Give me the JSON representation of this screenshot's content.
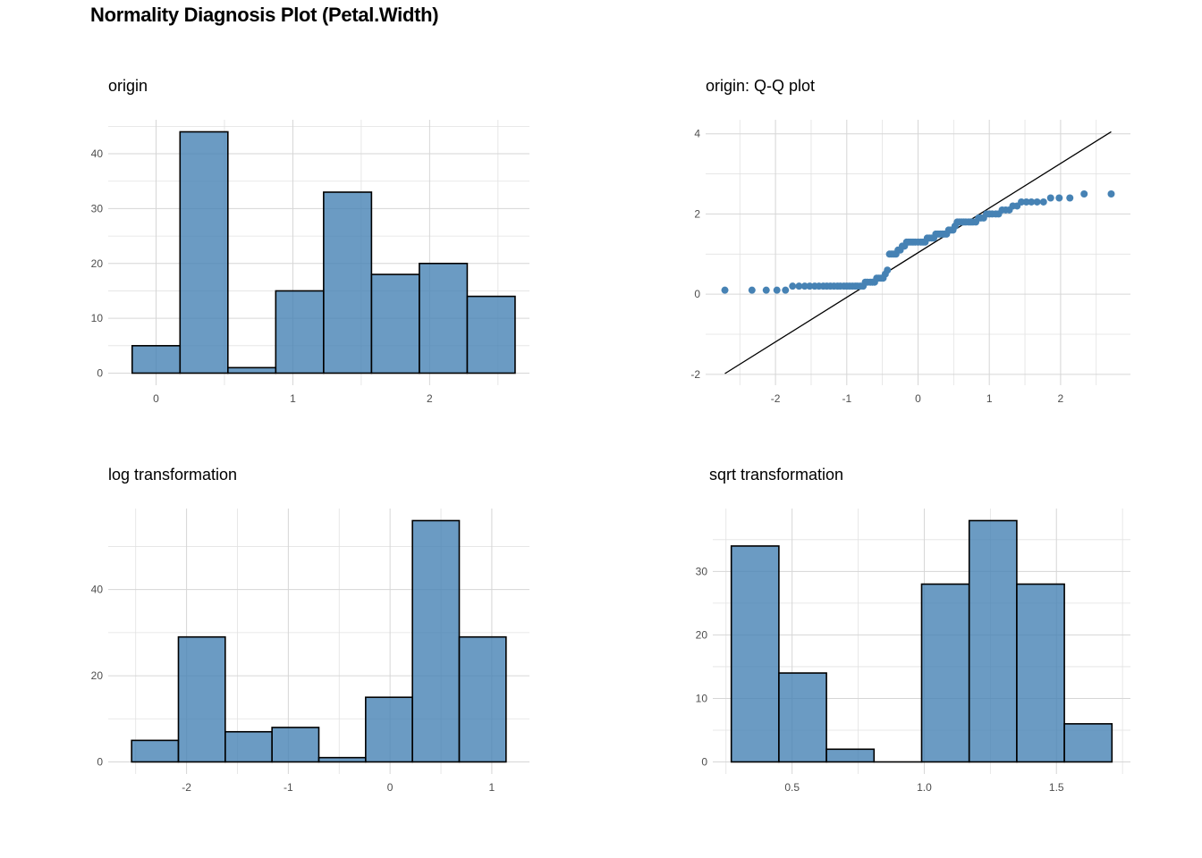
{
  "title": "Normality Diagnosis Plot (Petal.Width)",
  "colors": {
    "fill": "#4682B4",
    "outline": "#000000",
    "grid": "#d6d6d6",
    "point": "#4682B4",
    "line": "#000000"
  },
  "chart_data": [
    {
      "type": "bar",
      "subtitle": "origin",
      "bins": [
        {
          "x0": -0.175,
          "x1": 0.175,
          "count": 5
        },
        {
          "x0": 0.175,
          "x1": 0.525,
          "count": 44
        },
        {
          "x0": 0.525,
          "x1": 0.875,
          "count": 1
        },
        {
          "x0": 0.875,
          "x1": 1.225,
          "count": 15
        },
        {
          "x0": 1.225,
          "x1": 1.575,
          "count": 33
        },
        {
          "x0": 1.575,
          "x1": 1.925,
          "count": 18
        },
        {
          "x0": 1.925,
          "x1": 2.275,
          "count": 20
        },
        {
          "x0": 2.275,
          "x1": 2.625,
          "count": 14
        }
      ],
      "xticks": [
        0,
        1,
        2
      ],
      "yticks": [
        0,
        10,
        20,
        30,
        40
      ],
      "xlim": [
        -0.35,
        2.73
      ],
      "ylim": [
        -2.2,
        46.2
      ]
    },
    {
      "type": "scatter",
      "subtitle": "origin: Q-Q plot",
      "points": [
        [
          -2.71,
          0.1
        ],
        [
          -2.33,
          0.1
        ],
        [
          -2.13,
          0.1
        ],
        [
          -1.98,
          0.1
        ],
        [
          -1.86,
          0.1
        ],
        [
          -1.76,
          0.2
        ],
        [
          -1.67,
          0.2
        ],
        [
          -1.59,
          0.2
        ],
        [
          -1.52,
          0.2
        ],
        [
          -1.45,
          0.2
        ],
        [
          -1.39,
          0.2
        ],
        [
          -1.33,
          0.2
        ],
        [
          -1.28,
          0.2
        ],
        [
          -1.23,
          0.2
        ],
        [
          -1.18,
          0.2
        ],
        [
          -1.13,
          0.2
        ],
        [
          -1.09,
          0.2
        ],
        [
          -1.04,
          0.2
        ],
        [
          -1.0,
          0.2
        ],
        [
          -0.96,
          0.2
        ],
        [
          -0.92,
          0.2
        ],
        [
          -0.88,
          0.2
        ],
        [
          -0.85,
          0.2
        ],
        [
          -0.81,
          0.2
        ],
        [
          -0.77,
          0.2
        ],
        [
          -0.74,
          0.3
        ],
        [
          -0.71,
          0.3
        ],
        [
          -0.67,
          0.3
        ],
        [
          -0.64,
          0.3
        ],
        [
          -0.61,
          0.3
        ],
        [
          -0.58,
          0.4
        ],
        [
          -0.55,
          0.4
        ],
        [
          -0.52,
          0.4
        ],
        [
          -0.49,
          0.4
        ],
        [
          -0.46,
          0.5
        ],
        [
          -0.43,
          0.6
        ],
        [
          -0.4,
          1.0
        ],
        [
          -0.37,
          1.0
        ],
        [
          -0.34,
          1.0
        ],
        [
          -0.31,
          1.0
        ],
        [
          -0.28,
          1.1
        ],
        [
          -0.25,
          1.1
        ],
        [
          -0.22,
          1.2
        ],
        [
          -0.19,
          1.2
        ],
        [
          -0.16,
          1.3
        ],
        [
          -0.13,
          1.3
        ],
        [
          -0.1,
          1.3
        ],
        [
          -0.07,
          1.3
        ],
        [
          -0.04,
          1.3
        ],
        [
          0.0,
          1.3
        ],
        [
          0.04,
          1.3
        ],
        [
          0.07,
          1.3
        ],
        [
          0.1,
          1.3
        ],
        [
          0.13,
          1.4
        ],
        [
          0.16,
          1.4
        ],
        [
          0.19,
          1.4
        ],
        [
          0.22,
          1.4
        ],
        [
          0.25,
          1.5
        ],
        [
          0.28,
          1.5
        ],
        [
          0.31,
          1.5
        ],
        [
          0.34,
          1.5
        ],
        [
          0.37,
          1.5
        ],
        [
          0.4,
          1.5
        ],
        [
          0.43,
          1.6
        ],
        [
          0.46,
          1.6
        ],
        [
          0.49,
          1.6
        ],
        [
          0.52,
          1.7
        ],
        [
          0.55,
          1.8
        ],
        [
          0.58,
          1.8
        ],
        [
          0.61,
          1.8
        ],
        [
          0.64,
          1.8
        ],
        [
          0.67,
          1.8
        ],
        [
          0.71,
          1.8
        ],
        [
          0.74,
          1.8
        ],
        [
          0.77,
          1.8
        ],
        [
          0.81,
          1.8
        ],
        [
          0.85,
          1.9
        ],
        [
          0.88,
          1.9
        ],
        [
          0.92,
          1.9
        ],
        [
          0.96,
          2.0
        ],
        [
          1.0,
          2.0
        ],
        [
          1.04,
          2.0
        ],
        [
          1.09,
          2.0
        ],
        [
          1.13,
          2.0
        ],
        [
          1.18,
          2.1
        ],
        [
          1.23,
          2.1
        ],
        [
          1.28,
          2.1
        ],
        [
          1.33,
          2.2
        ],
        [
          1.39,
          2.2
        ],
        [
          1.45,
          2.3
        ],
        [
          1.52,
          2.3
        ],
        [
          1.59,
          2.3
        ],
        [
          1.67,
          2.3
        ],
        [
          1.76,
          2.3
        ],
        [
          1.86,
          2.4
        ],
        [
          1.98,
          2.4
        ],
        [
          2.13,
          2.4
        ],
        [
          2.33,
          2.5
        ],
        [
          2.71,
          2.5
        ]
      ],
      "reference_line": [
        [
          -2.71,
          -1.98
        ],
        [
          2.71,
          4.05
        ]
      ],
      "xticks": [
        -2,
        -1,
        0,
        1,
        2
      ],
      "yticks": [
        -2,
        0,
        2,
        4
      ],
      "xlim": [
        -2.98,
        2.98
      ],
      "ylim": [
        -2.27,
        4.35
      ]
    },
    {
      "type": "bar",
      "subtitle": "log transformation",
      "bins": [
        {
          "x0": -2.54,
          "x1": -2.08,
          "count": 5
        },
        {
          "x0": -2.08,
          "x1": -1.62,
          "count": 29
        },
        {
          "x0": -1.62,
          "x1": -1.16,
          "count": 7
        },
        {
          "x0": -1.16,
          "x1": -0.7,
          "count": 8
        },
        {
          "x0": -0.7,
          "x1": -0.24,
          "count": 1
        },
        {
          "x0": -0.24,
          "x1": 0.22,
          "count": 15
        },
        {
          "x0": 0.22,
          "x1": 0.68,
          "count": 56
        },
        {
          "x0": 0.68,
          "x1": 1.14,
          "count": 29
        }
      ],
      "xticks": [
        -2,
        -1,
        0,
        1
      ],
      "yticks": [
        0,
        20,
        40
      ],
      "xlim": [
        -2.77,
        1.37
      ],
      "ylim": [
        -2.8,
        58.8
      ]
    },
    {
      "type": "bar",
      "subtitle": "sqrt transformation",
      "bins": [
        {
          "x0": 0.27,
          "x1": 0.45,
          "count": 34
        },
        {
          "x0": 0.45,
          "x1": 0.63,
          "count": 14
        },
        {
          "x0": 0.63,
          "x1": 0.81,
          "count": 2
        },
        {
          "x0": 0.81,
          "x1": 0.99,
          "count": 0
        },
        {
          "x0": 0.99,
          "x1": 1.17,
          "count": 28
        },
        {
          "x0": 1.17,
          "x1": 1.35,
          "count": 38
        },
        {
          "x0": 1.35,
          "x1": 1.53,
          "count": 28
        },
        {
          "x0": 1.53,
          "x1": 1.71,
          "count": 6
        }
      ],
      "xticks": [
        0.5,
        1.0,
        1.5
      ],
      "xtick_labels": [
        "0.5",
        "1.0",
        "1.5"
      ],
      "yticks": [
        0,
        10,
        20,
        30
      ],
      "xlim": [
        0.2,
        1.78
      ],
      "ylim": [
        -1.9,
        39.9
      ]
    }
  ]
}
